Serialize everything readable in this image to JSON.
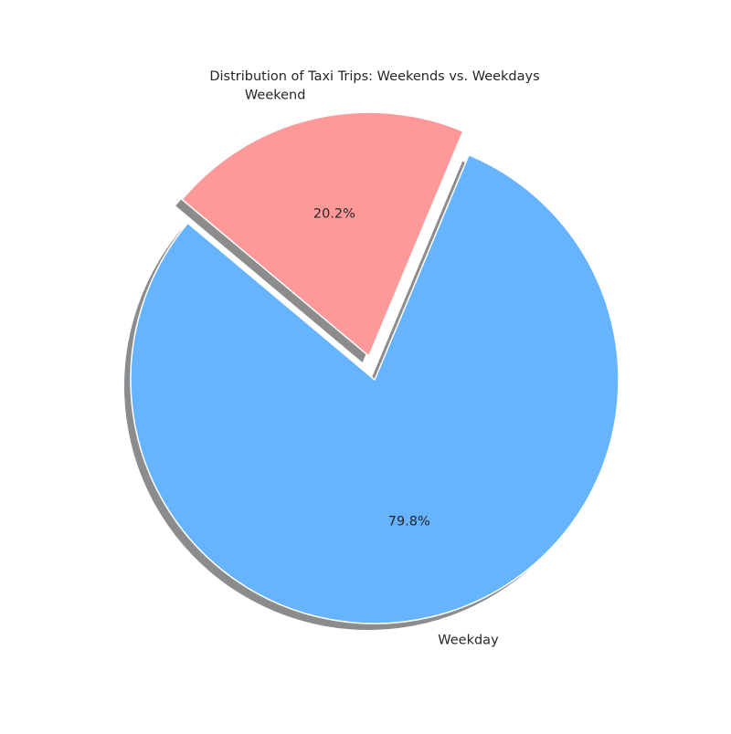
{
  "chart_data": {
    "type": "pie",
    "title": "Distribution of Taxi Trips: Weekends vs. Weekdays",
    "slices": [
      {
        "label": "Weekday",
        "value": 79.8,
        "percent_label": "79.8%",
        "color": "#66b3ff",
        "exploded": false
      },
      {
        "label": "Weekend",
        "value": 20.2,
        "percent_label": "20.2%",
        "color": "#ff9999",
        "exploded": true
      }
    ],
    "shadow": true,
    "start_angle": 140,
    "legend": "none"
  }
}
